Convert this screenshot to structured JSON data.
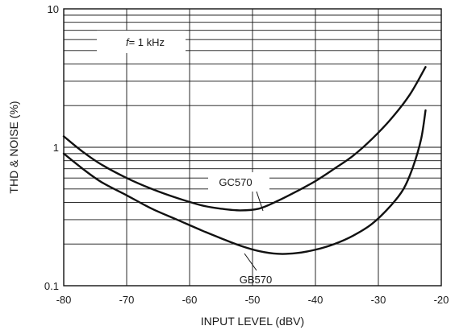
{
  "chart_data": {
    "type": "line",
    "xlabel": "INPUT LEVEL  (dBV)",
    "ylabel": "THD & NOISE (%)",
    "xlim": [
      -80,
      -20
    ],
    "ylim": [
      0.1,
      10
    ],
    "y_scale": "log",
    "grid": true,
    "x_ticks": [
      -80,
      -70,
      -60,
      -50,
      -40,
      -30,
      -20
    ],
    "x_tick_labels": [
      "-80",
      "-70",
      "-60",
      "-50",
      "-40",
      "-30",
      "-20"
    ],
    "y_ticks": [
      0.1,
      1,
      10
    ],
    "y_tick_labels": [
      "0.1",
      "1",
      "10"
    ],
    "annotation_f": "f",
    "annotation_rest": "= 1 kHz",
    "series": [
      {
        "name": "GC570",
        "x": [
          -80,
          -77,
          -74,
          -70,
          -66,
          -62,
          -58,
          -55,
          -52,
          -49,
          -46,
          -43,
          -40,
          -37,
          -34,
          -31,
          -28,
          -25,
          -22.5
        ],
        "y": [
          1.2,
          0.93,
          0.75,
          0.6,
          0.5,
          0.43,
          0.38,
          0.36,
          0.35,
          0.36,
          0.41,
          0.48,
          0.57,
          0.7,
          0.87,
          1.15,
          1.6,
          2.4,
          3.8
        ]
      },
      {
        "name": "GB570",
        "x": [
          -80,
          -77,
          -74,
          -70,
          -66,
          -62,
          -58,
          -55,
          -52,
          -49,
          -46,
          -43,
          -40,
          -37,
          -34,
          -31,
          -28,
          -26,
          -24.5,
          -23.2,
          -22.5
        ],
        "y": [
          0.9,
          0.7,
          0.56,
          0.45,
          0.36,
          0.3,
          0.25,
          0.22,
          0.195,
          0.178,
          0.17,
          0.172,
          0.182,
          0.2,
          0.23,
          0.28,
          0.38,
          0.5,
          0.72,
          1.15,
          1.85
        ]
      }
    ]
  }
}
